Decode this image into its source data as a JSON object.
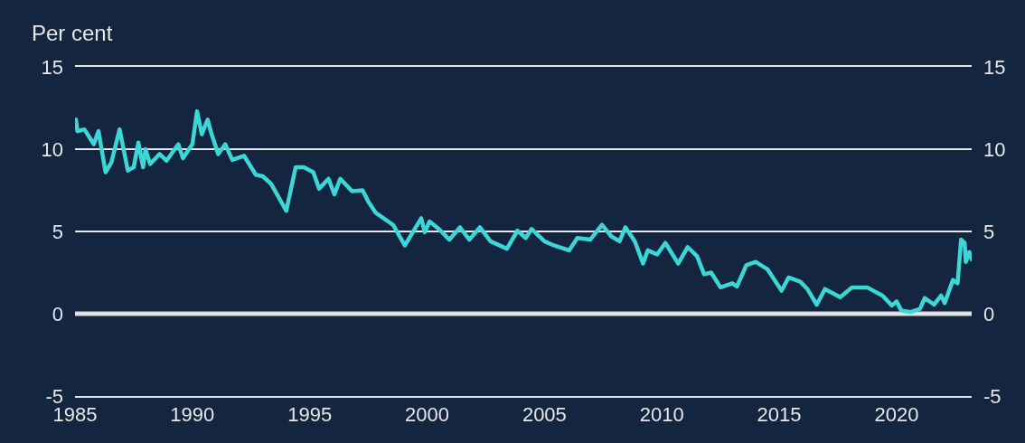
{
  "chart_data": {
    "type": "line",
    "ylabel": "Per cent",
    "x": [
      1985.04,
      1985.1,
      1985.4,
      1985.8,
      1986.0,
      1986.3,
      1986.55,
      1986.9,
      1987.25,
      1987.5,
      1987.7,
      1987.9,
      1988.0,
      1988.2,
      1988.6,
      1988.9,
      1989.4,
      1989.6,
      1990.0,
      1990.2,
      1990.4,
      1990.65,
      1990.8,
      1991.1,
      1991.4,
      1991.7,
      1992.2,
      1992.7,
      1993.0,
      1993.35,
      1994.0,
      1994.4,
      1994.75,
      1995.15,
      1995.4,
      1995.8,
      1996.05,
      1996.3,
      1996.8,
      1997.25,
      1997.5,
      1997.8,
      1998.55,
      1999.05,
      1999.75,
      1999.9,
      2000.1,
      2000.5,
      2000.95,
      2001.4,
      2001.8,
      2002.25,
      2002.7,
      2003.4,
      2003.85,
      2004.2,
      2004.45,
      2005.0,
      2005.4,
      2006.05,
      2006.4,
      2006.95,
      2007.45,
      2007.85,
      2008.2,
      2008.45,
      2008.85,
      2009.2,
      2009.4,
      2009.8,
      2010.15,
      2010.7,
      2011.1,
      2011.5,
      2011.8,
      2012.1,
      2012.5,
      2013.0,
      2013.2,
      2013.6,
      2014.0,
      2014.5,
      2015.1,
      2015.4,
      2015.9,
      2016.2,
      2016.6,
      2016.95,
      2017.6,
      2018.1,
      2018.75,
      2019.4,
      2019.8,
      2020.0,
      2020.2,
      2020.6,
      2021.0,
      2021.2,
      2021.6,
      2021.9,
      2022.05,
      2022.4,
      2022.6,
      2022.75,
      2022.9,
      2022.95,
      2023.1,
      2023.2
    ],
    "series": [
      {
        "color": "#3dd6d6",
        "values": [
          11.8,
          11.1,
          11.2,
          10.3,
          11.1,
          8.6,
          9.2,
          11.2,
          8.7,
          8.9,
          10.4,
          8.9,
          10.0,
          9.1,
          9.7,
          9.3,
          10.3,
          9.45,
          10.3,
          12.3,
          10.9,
          11.8,
          11.0,
          9.7,
          10.3,
          9.35,
          9.6,
          8.45,
          8.35,
          7.9,
          6.25,
          8.9,
          8.9,
          8.6,
          7.6,
          8.2,
          7.25,
          8.2,
          7.45,
          7.5,
          6.8,
          6.15,
          5.4,
          4.15,
          5.8,
          4.95,
          5.6,
          5.15,
          4.5,
          5.25,
          4.5,
          5.25,
          4.4,
          3.95,
          5.05,
          4.6,
          5.15,
          4.4,
          4.15,
          3.85,
          4.6,
          4.5,
          5.4,
          4.7,
          4.4,
          5.25,
          4.4,
          3.05,
          3.85,
          3.6,
          4.3,
          3.05,
          4.05,
          3.5,
          2.4,
          2.5,
          1.6,
          1.85,
          1.65,
          2.95,
          3.15,
          2.7,
          1.4,
          2.2,
          1.95,
          1.5,
          0.55,
          1.5,
          1.0,
          1.6,
          1.6,
          1.1,
          0.5,
          0.75,
          0.2,
          0.1,
          0.3,
          0.95,
          0.55,
          1.1,
          0.65,
          2.05,
          1.85,
          4.5,
          4.3,
          3.15,
          3.75,
          3.3
        ]
      }
    ],
    "xlim": [
      1985,
      2023.2
    ],
    "xticks": [
      1985,
      1990,
      1995,
      2000,
      2005,
      2010,
      2015,
      2020
    ],
    "ylim": [
      -5,
      15
    ],
    "yticks": [
      -5,
      0,
      5,
      10,
      15
    ],
    "y2lim": [
      -5,
      15
    ],
    "y2ticks": [
      -5,
      0,
      5,
      10,
      15
    ],
    "ref_lines": [
      {
        "axis": "y",
        "value": 0,
        "color": "#d9d9d9"
      }
    ],
    "grid": "y",
    "legend": false,
    "marker": "none",
    "line_style": "solid"
  }
}
